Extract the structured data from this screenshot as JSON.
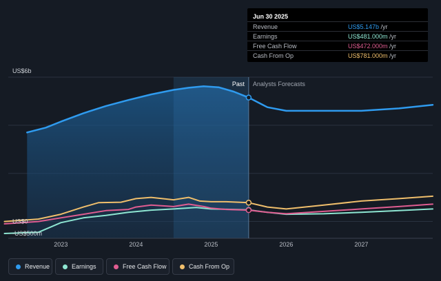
{
  "tooltip": {
    "date": "Jun 30 2025",
    "rows": [
      {
        "label": "Revenue",
        "value": "US$5.147b",
        "unit": " /yr",
        "color": "#2f9bef"
      },
      {
        "label": "Earnings",
        "value": "US$481.000m",
        "unit": " /yr",
        "color": "#8ee6d2"
      },
      {
        "label": "Free Cash Flow",
        "value": "US$472.000m",
        "unit": " /yr",
        "color": "#e05d91"
      },
      {
        "label": "Cash From Op",
        "value": "US$781.000m",
        "unit": " /yr",
        "color": "#f0bf6c"
      }
    ]
  },
  "legend": [
    {
      "label": "Revenue",
      "color": "#2f9bef"
    },
    {
      "label": "Earnings",
      "color": "#8ee6d2"
    },
    {
      "label": "Free Cash Flow",
      "color": "#e05d91"
    },
    {
      "label": "Cash From Op",
      "color": "#f0bf6c"
    }
  ],
  "chart_data": {
    "type": "line",
    "title": "",
    "xlabel": "",
    "ylabel": "",
    "y_tick_labels": [
      "US$6b",
      "US$0",
      "-US$500m"
    ],
    "x_tick_labels": [
      "2023",
      "2024",
      "2025",
      "2026",
      "2027"
    ],
    "x_ticks": [
      2023,
      2024,
      2025,
      2026,
      2027
    ],
    "xlim": [
      2022.3,
      2027.95
    ],
    "ylim": [
      -0.7,
      6.0
    ],
    "divider_x": 2025.5,
    "past_label": "Past",
    "forecast_label": "Analysts Forecasts",
    "highlight_start": 2024.5,
    "series": [
      {
        "name": "Revenue",
        "color": "#2f9bef",
        "x": [
          2022.55,
          2022.8,
          2023.0,
          2023.3,
          2023.6,
          2023.9,
          2024.2,
          2024.5,
          2024.7,
          2024.9,
          2025.1,
          2025.3,
          2025.5,
          2025.75,
          2026.0,
          2026.5,
          2027.0,
          2027.5,
          2027.95
        ],
        "y": [
          3.7,
          3.9,
          4.15,
          4.5,
          4.8,
          5.05,
          5.28,
          5.47,
          5.56,
          5.62,
          5.58,
          5.4,
          5.15,
          4.75,
          4.6,
          4.6,
          4.6,
          4.7,
          4.85
        ]
      },
      {
        "name": "Earnings",
        "color": "#8ee6d2",
        "x": [
          2022.25,
          2022.7,
          2023.0,
          2023.3,
          2023.6,
          2023.9,
          2024.2,
          2024.5,
          2024.8,
          2025.0,
          2025.3,
          2025.5,
          2025.75,
          2026.0,
          2026.5,
          2027.0,
          2027.5,
          2027.95
        ],
        "y": [
          -0.5,
          -0.45,
          -0.05,
          0.15,
          0.25,
          0.38,
          0.47,
          0.52,
          0.58,
          0.52,
          0.5,
          0.48,
          0.38,
          0.3,
          0.32,
          0.38,
          0.45,
          0.52
        ]
      },
      {
        "name": "Free Cash Flow",
        "color": "#e05d91",
        "x": [
          2022.25,
          2022.7,
          2023.0,
          2023.3,
          2023.6,
          2023.9,
          2024.0,
          2024.2,
          2024.5,
          2024.7,
          2024.9,
          2025.0,
          2025.2,
          2025.5,
          2025.75,
          2026.0,
          2026.5,
          2027.0,
          2027.5,
          2027.95
        ],
        "y": [
          -0.1,
          0.0,
          0.15,
          0.3,
          0.45,
          0.5,
          0.6,
          0.68,
          0.62,
          0.72,
          0.62,
          0.55,
          0.5,
          0.47,
          0.38,
          0.32,
          0.42,
          0.52,
          0.62,
          0.72
        ]
      },
      {
        "name": "Cash From Op",
        "color": "#f0bf6c",
        "x": [
          2022.25,
          2022.7,
          2023.0,
          2023.3,
          2023.5,
          2023.8,
          2024.0,
          2024.2,
          2024.5,
          2024.7,
          2024.85,
          2025.0,
          2025.2,
          2025.5,
          2025.75,
          2026.0,
          2026.5,
          2027.0,
          2027.5,
          2027.95
        ],
        "y": [
          0.0,
          0.1,
          0.3,
          0.6,
          0.78,
          0.8,
          0.95,
          1.0,
          0.9,
          1.0,
          0.85,
          0.82,
          0.82,
          0.78,
          0.6,
          0.52,
          0.68,
          0.85,
          0.95,
          1.05
        ]
      }
    ]
  }
}
